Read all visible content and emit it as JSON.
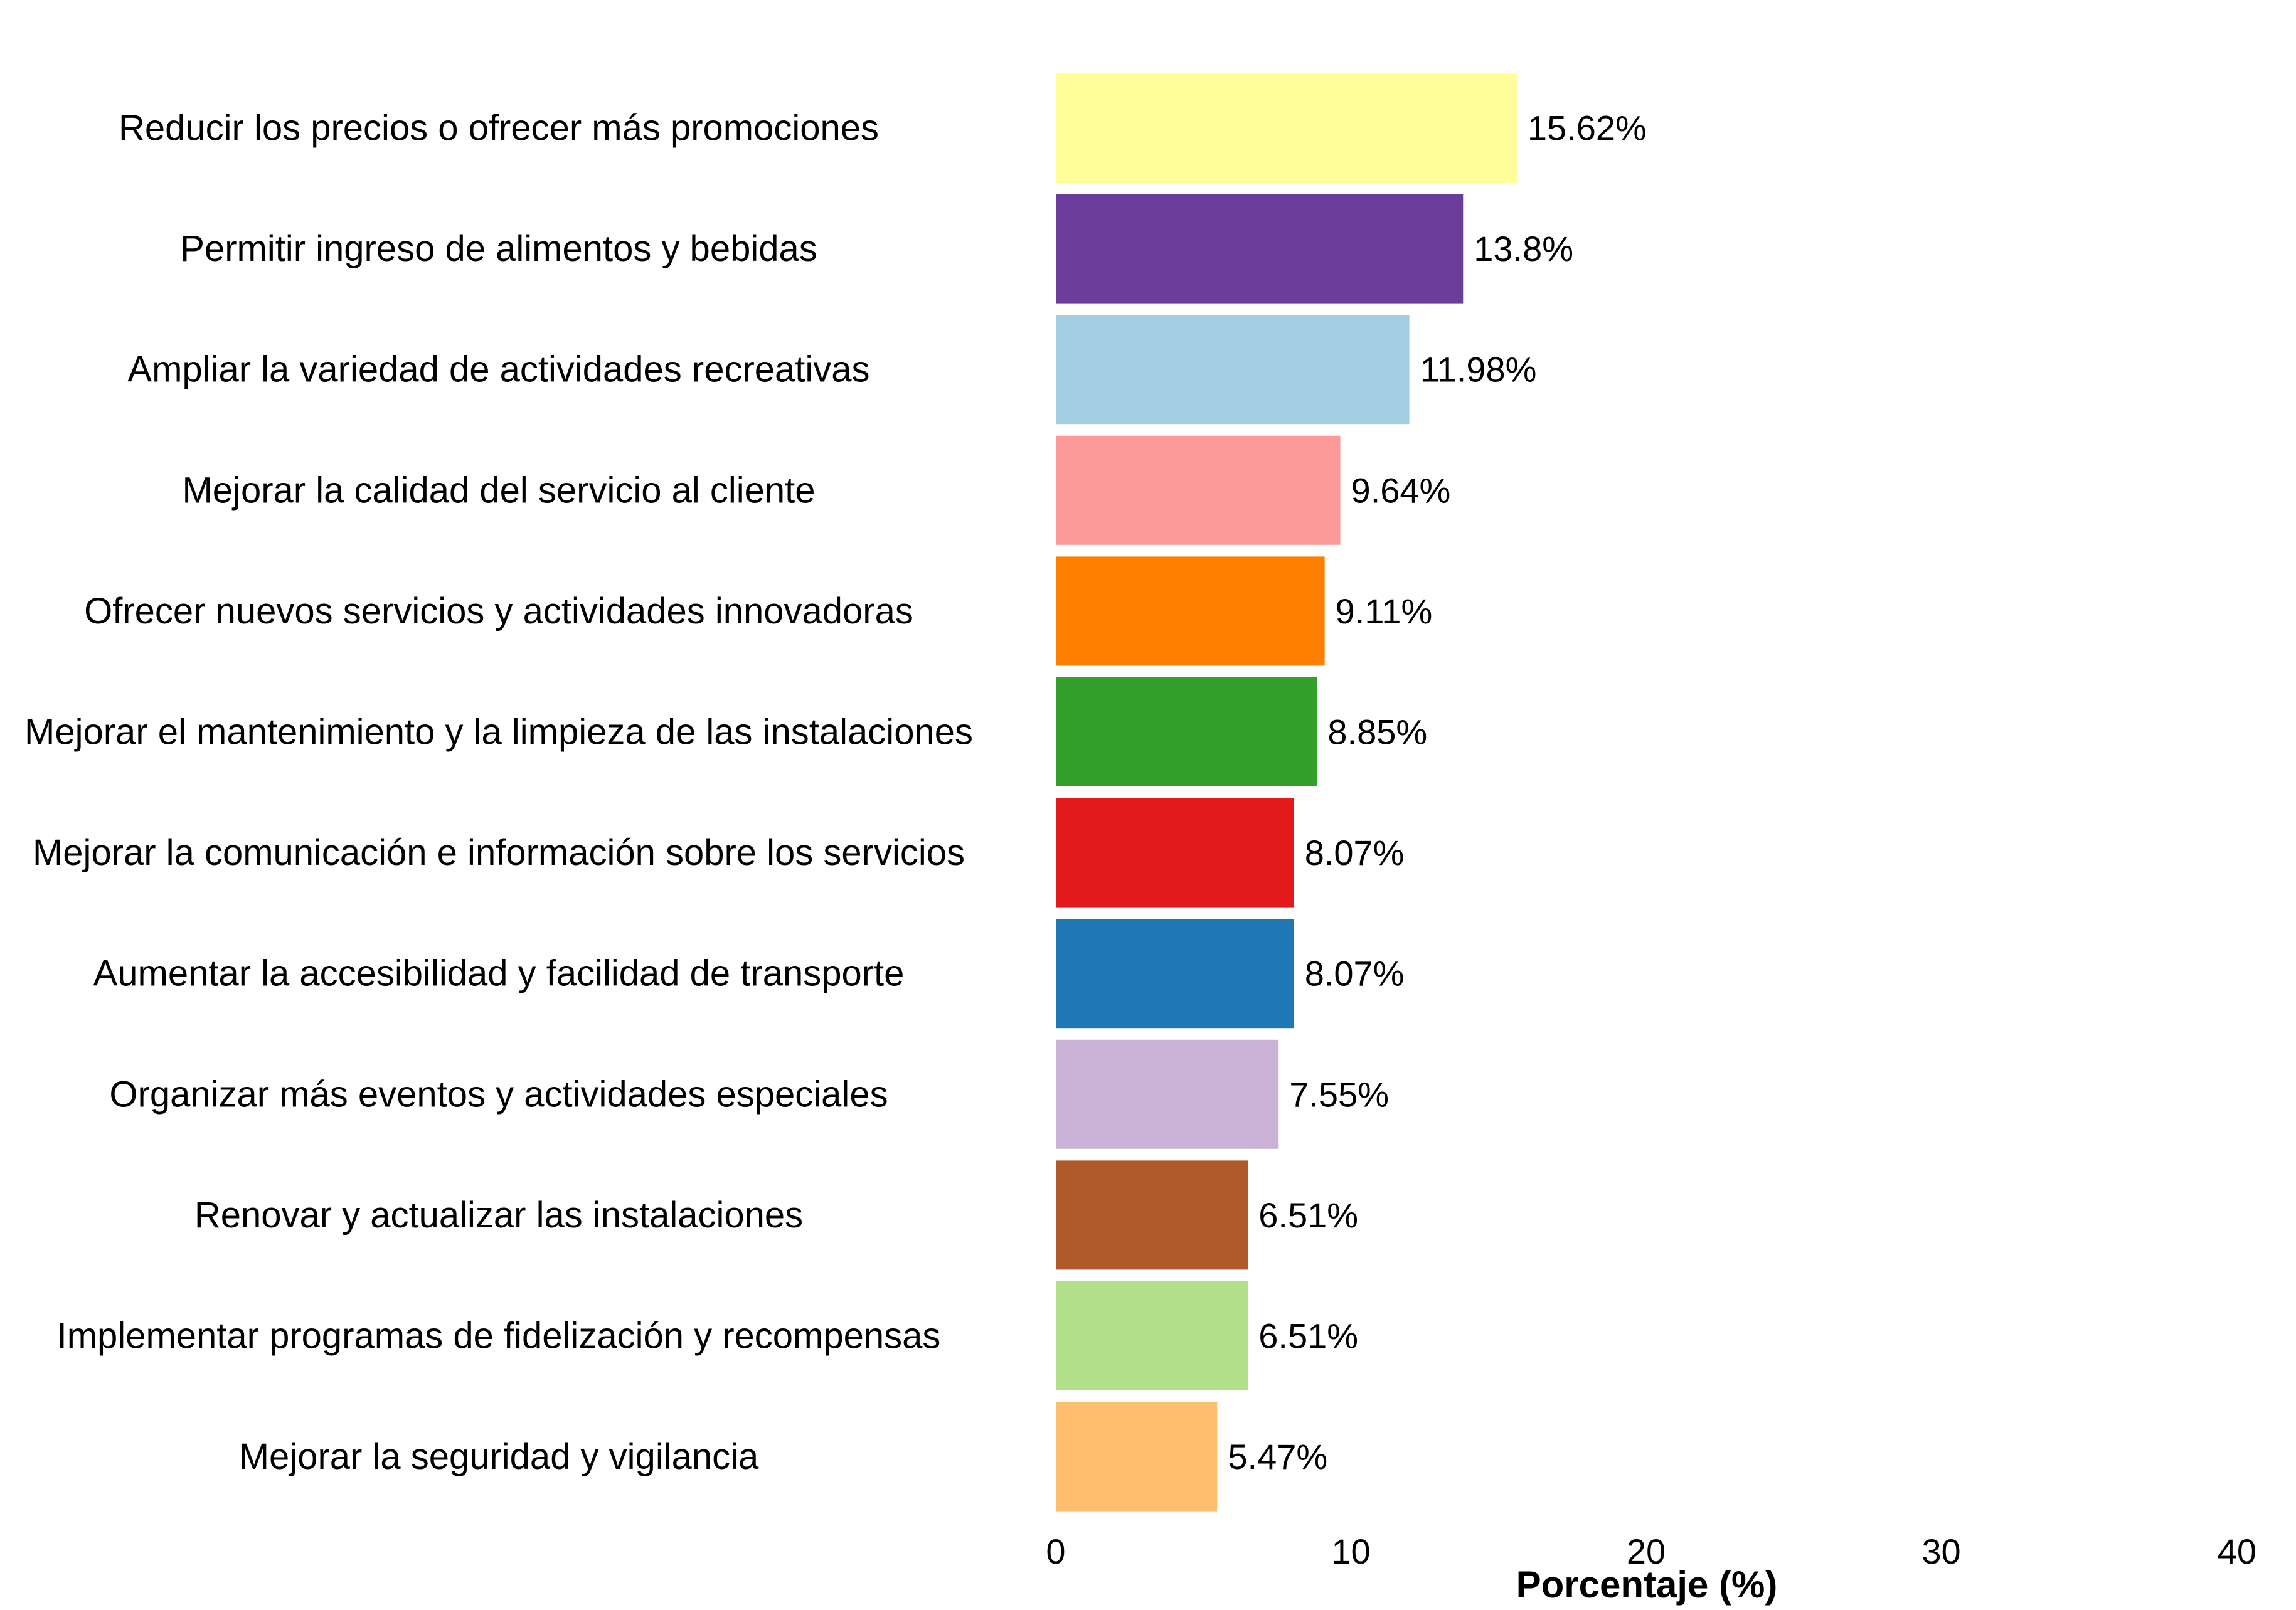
{
  "chart_data": {
    "type": "bar",
    "orientation": "horizontal",
    "categories": [
      "Reducir los precios o ofrecer más promociones",
      "Permitir ingreso de alimentos y bebidas",
      "Ampliar la variedad de actividades recreativas",
      "Mejorar la calidad del servicio al cliente",
      "Ofrecer nuevos servicios y actividades innovadoras",
      "Mejorar el mantenimiento y la limpieza de las instalaciones",
      "Mejorar la comunicación e información sobre los servicios",
      "Aumentar la accesibilidad y facilidad de transporte",
      "Organizar más eventos y actividades especiales",
      "Renovar y actualizar las instalaciones",
      "Implementar programas de fidelización y recompensas",
      "Mejorar la seguridad y vigilancia"
    ],
    "values": [
      15.62,
      13.8,
      11.98,
      9.64,
      9.11,
      8.85,
      8.07,
      8.07,
      7.55,
      6.51,
      6.51,
      5.47
    ],
    "value_labels": [
      "15.62%",
      "13.8%",
      "11.98%",
      "9.64%",
      "9.11%",
      "8.85%",
      "8.07%",
      "8.07%",
      "7.55%",
      "6.51%",
      "6.51%",
      "5.47%"
    ],
    "colors": [
      "#FFFF99",
      "#6A3D9A",
      "#A6CEE3",
      "#FB9A99",
      "#FF7F00",
      "#33A02C",
      "#E31A1C",
      "#1F78B4",
      "#CAB2D6",
      "#B15928",
      "#B2DF8A",
      "#FDBF6F"
    ],
    "xlabel": "Porcentaje (%)",
    "ylabel": "",
    "title": "",
    "xlim": [
      0,
      40
    ],
    "xticks": [
      0,
      10,
      20,
      30,
      40
    ],
    "grid": false,
    "legend": "none"
  }
}
